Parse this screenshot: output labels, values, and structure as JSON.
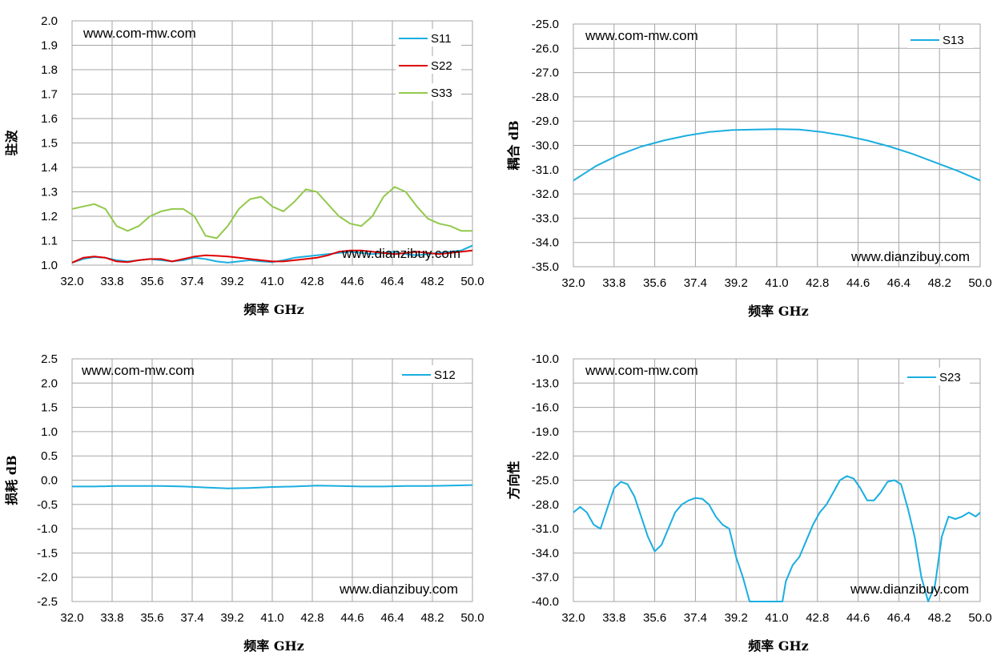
{
  "colors": {
    "s11": "#1aaee0",
    "s22": "#e00000",
    "s33": "#92c94d",
    "s13": "#1aaee0",
    "s12": "#1aaee0",
    "s23": "#1aaee0",
    "grid": "#a6a6a6"
  },
  "chart_data": [
    {
      "id": "vswr",
      "type": "line",
      "xlabel": "频率 GHz",
      "ylabel": "驻波",
      "xlim": [
        32.0,
        50.0
      ],
      "ylim": [
        1.0,
        2.0
      ],
      "xticks": [
        "32.0",
        "33.8",
        "35.6",
        "37.4",
        "39.2",
        "41.0",
        "42.8",
        "44.6",
        "46.4",
        "48.2",
        "50.0"
      ],
      "yticks": [
        "1.0",
        "1.1",
        "1.2",
        "1.3",
        "1.4",
        "1.5",
        "1.6",
        "1.7",
        "1.8",
        "1.9",
        "2.0"
      ],
      "watermarks": [
        "www.com-mw.com",
        "www.dianzibuy.com"
      ],
      "legend": "top-right",
      "series": [
        {
          "name": "S11",
          "color_key": "s11",
          "x": [
            32.0,
            32.5,
            33.0,
            33.5,
            34.0,
            34.5,
            35.0,
            35.5,
            36.0,
            36.5,
            37.0,
            37.5,
            38.0,
            38.5,
            39.0,
            39.5,
            40.0,
            40.5,
            41.0,
            41.5,
            42.0,
            42.5,
            43.0,
            43.5,
            44.0,
            44.5,
            45.0,
            45.5,
            46.0,
            46.5,
            47.0,
            47.5,
            48.0,
            48.5,
            49.0,
            49.5,
            50.0
          ],
          "y": [
            1.01,
            1.025,
            1.033,
            1.03,
            1.02,
            1.015,
            1.02,
            1.025,
            1.02,
            1.015,
            1.02,
            1.03,
            1.025,
            1.015,
            1.01,
            1.015,
            1.02,
            1.015,
            1.012,
            1.02,
            1.03,
            1.035,
            1.04,
            1.045,
            1.05,
            1.055,
            1.05,
            1.045,
            1.05,
            1.055,
            1.045,
            1.04,
            1.045,
            1.05,
            1.055,
            1.06,
            1.08
          ]
        },
        {
          "name": "S22",
          "color_key": "s22",
          "x": [
            32.0,
            32.5,
            33.0,
            33.5,
            34.0,
            34.5,
            35.0,
            35.5,
            36.0,
            36.5,
            37.0,
            37.5,
            38.0,
            38.5,
            39.0,
            39.5,
            40.0,
            40.5,
            41.0,
            41.5,
            42.0,
            42.5,
            43.0,
            43.5,
            44.0,
            44.5,
            45.0,
            45.5,
            46.0,
            46.5,
            47.0,
            47.5,
            48.0,
            48.5,
            49.0,
            49.5,
            50.0
          ],
          "y": [
            1.01,
            1.03,
            1.035,
            1.03,
            1.015,
            1.012,
            1.02,
            1.025,
            1.025,
            1.015,
            1.025,
            1.035,
            1.04,
            1.038,
            1.035,
            1.03,
            1.025,
            1.02,
            1.015,
            1.015,
            1.02,
            1.025,
            1.03,
            1.04,
            1.055,
            1.06,
            1.06,
            1.055,
            1.05,
            1.045,
            1.05,
            1.055,
            1.05,
            1.045,
            1.05,
            1.055,
            1.06
          ]
        },
        {
          "name": "S33",
          "color_key": "s33",
          "x": [
            32.0,
            32.5,
            33.0,
            33.5,
            34.0,
            34.5,
            35.0,
            35.5,
            36.0,
            36.5,
            37.0,
            37.5,
            38.0,
            38.5,
            39.0,
            39.5,
            40.0,
            40.5,
            41.0,
            41.5,
            42.0,
            42.5,
            43.0,
            43.5,
            44.0,
            44.5,
            45.0,
            45.5,
            46.0,
            46.5,
            47.0,
            47.5,
            48.0,
            48.5,
            49.0,
            49.5,
            50.0
          ],
          "y": [
            1.23,
            1.24,
            1.25,
            1.23,
            1.16,
            1.14,
            1.16,
            1.2,
            1.22,
            1.23,
            1.23,
            1.2,
            1.12,
            1.11,
            1.16,
            1.23,
            1.27,
            1.28,
            1.24,
            1.22,
            1.26,
            1.31,
            1.3,
            1.25,
            1.2,
            1.17,
            1.16,
            1.2,
            1.28,
            1.32,
            1.3,
            1.24,
            1.19,
            1.17,
            1.16,
            1.14,
            1.14
          ]
        }
      ]
    },
    {
      "id": "coupling",
      "type": "line",
      "xlabel": "频率 GHz",
      "ylabel": "耦合 dB",
      "xlim": [
        32.0,
        50.0
      ],
      "ylim": [
        -35.0,
        -25.0
      ],
      "xticks": [
        "32.0",
        "33.8",
        "35.6",
        "37.4",
        "39.2",
        "41.0",
        "42.8",
        "44.6",
        "46.4",
        "48.2",
        "50.0"
      ],
      "yticks": [
        "-35.0",
        "-34.0",
        "-33.0",
        "-32.0",
        "-31.0",
        "-30.0",
        "-29.0",
        "-28.0",
        "-27.0",
        "-26.0",
        "-25.0"
      ],
      "watermarks": [
        "www.com-mw.com",
        "www.dianzibuy.com"
      ],
      "legend": "top-right",
      "series": [
        {
          "name": "S13",
          "color_key": "s13",
          "x": [
            32.0,
            33.0,
            34.0,
            35.0,
            36.0,
            37.0,
            38.0,
            39.0,
            40.0,
            41.0,
            42.0,
            43.0,
            44.0,
            45.0,
            46.0,
            47.0,
            48.0,
            49.0,
            50.0
          ],
          "y": [
            -31.45,
            -30.85,
            -30.4,
            -30.05,
            -29.8,
            -29.6,
            -29.45,
            -29.37,
            -29.35,
            -29.33,
            -29.35,
            -29.45,
            -29.6,
            -29.8,
            -30.05,
            -30.35,
            -30.7,
            -31.05,
            -31.45
          ]
        }
      ]
    },
    {
      "id": "loss",
      "type": "line",
      "xlabel": "频率 GHz",
      "ylabel": "损耗 dB",
      "xlim": [
        32.0,
        50.0
      ],
      "ylim": [
        -2.5,
        2.5
      ],
      "xticks": [
        "32.0",
        "33.8",
        "35.6",
        "37.4",
        "39.2",
        "41.0",
        "42.8",
        "44.6",
        "46.4",
        "48.2",
        "50.0"
      ],
      "yticks": [
        "-2.5",
        "-2.0",
        "-1.5",
        "-1.0",
        "-0.5",
        "0.0",
        "0.5",
        "1.0",
        "1.5",
        "2.0",
        "2.5"
      ],
      "watermarks": [
        "www.com-mw.com",
        "www.dianzibuy.com"
      ],
      "legend": "top-right",
      "series": [
        {
          "name": "S12",
          "color_key": "s12",
          "x": [
            32.0,
            33.0,
            34.0,
            35.0,
            36.0,
            37.0,
            38.0,
            39.0,
            40.0,
            41.0,
            42.0,
            43.0,
            44.0,
            45.0,
            46.0,
            47.0,
            48.0,
            49.0,
            50.0
          ],
          "y": [
            -0.13,
            -0.13,
            -0.12,
            -0.12,
            -0.12,
            -0.13,
            -0.15,
            -0.17,
            -0.16,
            -0.14,
            -0.13,
            -0.11,
            -0.12,
            -0.13,
            -0.13,
            -0.12,
            -0.12,
            -0.11,
            -0.1
          ]
        }
      ]
    },
    {
      "id": "directivity",
      "type": "line",
      "xlabel": "频率 GHz",
      "ylabel": "方向性",
      "xlim": [
        32.0,
        50.0
      ],
      "ylim": [
        -40.0,
        -10.0
      ],
      "xticks": [
        "32.0",
        "33.8",
        "35.6",
        "37.4",
        "39.2",
        "41.0",
        "42.8",
        "44.6",
        "46.4",
        "48.2",
        "50.0"
      ],
      "yticks": [
        "-40.0",
        "-37.0",
        "-34.0",
        "-31.0",
        "-28.0",
        "-25.0",
        "-22.0",
        "-19.0",
        "-16.0",
        "-13.0",
        "-10.0"
      ],
      "watermarks": [
        "www.com-mw.com",
        "www.dianzibuy.com"
      ],
      "legend": "top-right",
      "series": [
        {
          "name": "S23",
          "color_key": "s23",
          "x": [
            32.0,
            32.3,
            32.6,
            32.9,
            33.2,
            33.5,
            33.8,
            34.1,
            34.4,
            34.7,
            35.0,
            35.3,
            35.6,
            35.9,
            36.2,
            36.5,
            36.8,
            37.1,
            37.4,
            37.7,
            38.0,
            38.3,
            38.6,
            38.9,
            39.2,
            39.5,
            39.8,
            40.1,
            40.4,
            40.7,
            40.85,
            41.25,
            41.4,
            41.7,
            42.0,
            42.3,
            42.6,
            42.9,
            43.2,
            43.5,
            43.8,
            44.1,
            44.4,
            44.7,
            45.0,
            45.3,
            45.6,
            45.9,
            46.2,
            46.5,
            46.8,
            47.1,
            47.4,
            47.7,
            48.0,
            48.3,
            48.6,
            48.9,
            49.2,
            49.5,
            49.8,
            50.0
          ],
          "y": [
            -29.0,
            -28.3,
            -29.0,
            -30.5,
            -31.0,
            -28.5,
            -26.0,
            -25.2,
            -25.5,
            -27.0,
            -29.5,
            -32.0,
            -33.8,
            -33.0,
            -31.0,
            -29.0,
            -28.0,
            -27.5,
            -27.2,
            -27.3,
            -28.0,
            -29.5,
            -30.5,
            -31.0,
            -34.5,
            -37.0,
            -40.0,
            -40.0,
            -40.0,
            -40.0,
            -40.0,
            -40.0,
            -37.5,
            -35.5,
            -34.5,
            -32.5,
            -30.5,
            -29.0,
            -28.0,
            -26.5,
            -25.0,
            -24.5,
            -24.8,
            -26.0,
            -27.5,
            -27.5,
            -26.5,
            -25.2,
            -25.0,
            -25.5,
            -28.5,
            -32.0,
            -37.0,
            -40.0,
            -38.0,
            -32.0,
            -29.5,
            -29.8,
            -29.5,
            -29.0,
            -29.5,
            -29.0
          ]
        }
      ]
    }
  ]
}
